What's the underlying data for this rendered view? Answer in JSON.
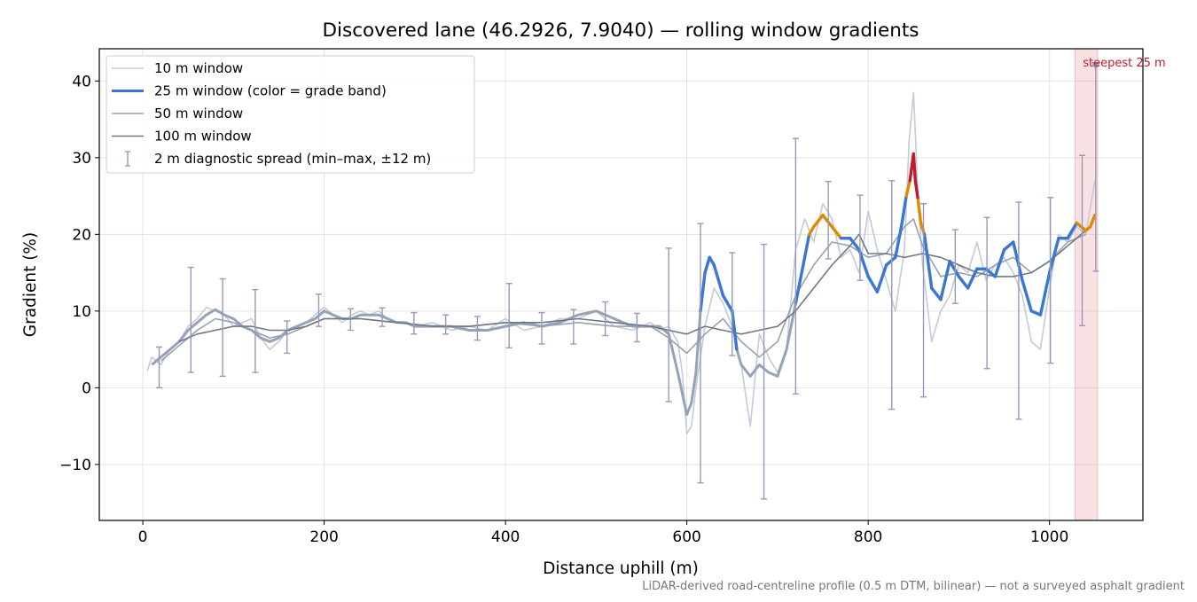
{
  "chart_data": {
    "type": "line",
    "title": "Discovered lane (46.2926, 7.9040) — rolling window gradients",
    "xlabel": "Distance uphill (m)",
    "ylabel": "Gradient (%)",
    "xlim": [
      -48,
      1103
    ],
    "ylim": [
      -17.3,
      44.2
    ],
    "grid": true,
    "legend_position": "top-left",
    "xticks": [
      0,
      200,
      400,
      600,
      800,
      1000
    ],
    "xtick_labels": [
      "0",
      "200",
      "400",
      "600",
      "800",
      "1000"
    ],
    "yticks": [
      -10,
      0,
      10,
      20,
      30,
      40
    ],
    "ytick_labels": [
      "−10",
      "0",
      "10",
      "20",
      "30",
      "40"
    ],
    "colors": {
      "w10": "#c3cbd6",
      "w25_base": "#94a3b8",
      "w50": "#98a1b0",
      "w100": "#6f7886",
      "spread": "#9a97bd",
      "band_normal": "#3a77d4",
      "band_steep": "#e08a00",
      "band_very_steep": "#c01c2c",
      "highlight": "#e8a3a8",
      "annotation": "#c01c2c",
      "footnote": "#777777"
    },
    "series": [
      {
        "name": "10 m window",
        "x": [
          5,
          10,
          20,
          30,
          40,
          50,
          60,
          70,
          80,
          90,
          100,
          110,
          120,
          130,
          140,
          150,
          160,
          170,
          180,
          190,
          200,
          210,
          220,
          230,
          240,
          250,
          260,
          270,
          280,
          290,
          300,
          320,
          340,
          360,
          380,
          400,
          420,
          440,
          460,
          480,
          500,
          520,
          540,
          560,
          570,
          580,
          590,
          595,
          600,
          605,
          610,
          620,
          630,
          640,
          650,
          660,
          670,
          680,
          690,
          700,
          710,
          720,
          730,
          740,
          750,
          760,
          770,
          780,
          790,
          800,
          810,
          820,
          830,
          840,
          845,
          850,
          855,
          860,
          870,
          880,
          890,
          900,
          910,
          920,
          930,
          940,
          950,
          960,
          970,
          980,
          990,
          1000,
          1010,
          1020,
          1030,
          1040,
          1050
        ],
        "y": [
          2.2,
          4,
          3,
          5,
          6,
          8,
          9,
          10.5,
          10,
          9.5,
          8,
          8.5,
          9,
          6.5,
          5,
          6,
          7.5,
          8,
          8.5,
          9.5,
          10.5,
          9.5,
          8.5,
          9.5,
          10,
          9.5,
          10,
          9,
          8.5,
          8.5,
          8,
          8.5,
          7.5,
          8,
          7.5,
          9,
          7.5,
          8,
          9,
          9,
          10,
          8,
          7.5,
          8.5,
          7.5,
          8,
          6,
          2,
          -6,
          -5,
          0,
          8,
          13,
          11,
          8,
          3,
          -5,
          7,
          4,
          2,
          5,
          18,
          22,
          19,
          24,
          22,
          17,
          18,
          15,
          23,
          18,
          14,
          10,
          18,
          32,
          38.5,
          25,
          16,
          6,
          10,
          12,
          16,
          15,
          19,
          14,
          16,
          17,
          15,
          12,
          6,
          5,
          13,
          20,
          19,
          21,
          20,
          27
        ]
      },
      {
        "name": "25 m window (color = grade band)",
        "x": [
          10,
          20,
          30,
          40,
          50,
          60,
          70,
          80,
          90,
          100,
          110,
          120,
          130,
          140,
          150,
          160,
          170,
          180,
          190,
          200,
          210,
          220,
          230,
          240,
          250,
          260,
          270,
          280,
          290,
          300,
          320,
          340,
          360,
          380,
          400,
          420,
          440,
          460,
          480,
          500,
          520,
          540,
          560,
          570,
          580,
          590,
          600,
          605,
          610,
          615,
          620,
          625,
          630,
          640,
          650,
          655,
          660,
          670,
          680,
          690,
          700,
          710,
          720,
          725,
          730,
          735,
          740,
          750,
          760,
          770,
          780,
          790,
          800,
          810,
          820,
          830,
          835,
          838,
          842,
          846,
          850,
          852,
          855,
          858,
          862,
          870,
          880,
          890,
          900,
          910,
          920,
          930,
          940,
          950,
          960,
          970,
          980,
          990,
          1000,
          1010,
          1020,
          1030,
          1035,
          1040,
          1045,
          1050
        ],
        "y": [
          3,
          4,
          5,
          6,
          7.5,
          8.5,
          9.5,
          10.2,
          9.5,
          9,
          8,
          7.5,
          6.5,
          6,
          6.5,
          7.5,
          8,
          8.5,
          9,
          10,
          9.5,
          9,
          9,
          9.5,
          9.5,
          9.5,
          9,
          8.5,
          8.5,
          8,
          8,
          8,
          7.5,
          7.5,
          8,
          8.5,
          8,
          8.5,
          9.5,
          10,
          9,
          8,
          8,
          8,
          7,
          2,
          -3.5,
          -2,
          2,
          10,
          15,
          17,
          16,
          12,
          10,
          5,
          3,
          1.5,
          3,
          2,
          1.5,
          5,
          11,
          14,
          17,
          20,
          21,
          22.5,
          21,
          19.5,
          19.5,
          18,
          14.5,
          12.5,
          16,
          17,
          20,
          22,
          25,
          27,
          30.5,
          27,
          24.5,
          21.5,
          20,
          13,
          11.5,
          16.5,
          14.5,
          13,
          15.5,
          15.5,
          14.5,
          18,
          19,
          14,
          10,
          9.5,
          15,
          19.5,
          19.5,
          21.5,
          21,
          20.5,
          21,
          22.5
        ],
        "bands": [
          "normal",
          "normal",
          "normal",
          "normal",
          "normal",
          "normal",
          "normal",
          "normal",
          "normal",
          "normal",
          "normal",
          "normal",
          "normal",
          "normal",
          "normal",
          "normal",
          "normal",
          "normal",
          "normal",
          "normal",
          "normal",
          "normal",
          "normal",
          "normal",
          "normal",
          "normal",
          "normal",
          "normal",
          "normal",
          "normal",
          "normal",
          "normal",
          "normal",
          "normal",
          "normal",
          "normal",
          "normal",
          "normal",
          "normal",
          "normal",
          "normal",
          "normal",
          "normal",
          "normal",
          "normal",
          "normal",
          "normal",
          "normal",
          "normal",
          "normal",
          "normal",
          "normal",
          "normal",
          "normal",
          "normal",
          "normal",
          "normal",
          "normal",
          "normal",
          "normal",
          "normal",
          "normal",
          "normal",
          "normal",
          "normal",
          "steep",
          "steep",
          "steep",
          "steep",
          "normal",
          "normal",
          "normal",
          "normal",
          "normal",
          "normal",
          "normal",
          "normal",
          "normal",
          "steep",
          "very_steep",
          "very_steep",
          "very_steep",
          "steep",
          "steep",
          "normal",
          "normal",
          "normal",
          "normal",
          "normal",
          "normal",
          "normal",
          "normal",
          "normal",
          "normal",
          "normal",
          "normal",
          "normal",
          "normal",
          "normal",
          "normal",
          "normal",
          "steep",
          "steep",
          "steep",
          "steep",
          "steep"
        ]
      },
      {
        "name": "50 m window",
        "x": [
          20,
          40,
          60,
          80,
          100,
          120,
          140,
          160,
          180,
          200,
          240,
          280,
          320,
          360,
          400,
          440,
          480,
          520,
          560,
          580,
          600,
          620,
          640,
          660,
          680,
          700,
          720,
          740,
          760,
          780,
          800,
          820,
          840,
          850,
          860,
          880,
          900,
          920,
          940,
          960,
          980,
          1000,
          1020,
          1040
        ],
        "y": [
          3.5,
          5.5,
          7.5,
          9,
          8.5,
          7.5,
          6.5,
          7,
          8,
          9,
          9,
          8.5,
          8,
          8,
          8.5,
          8,
          8.5,
          8,
          8,
          6.5,
          4.5,
          7,
          9,
          6,
          4,
          6,
          12,
          16,
          19,
          18.5,
          17,
          17.5,
          21,
          22,
          18.5,
          14.5,
          15,
          14.5,
          16,
          17,
          15,
          16.5,
          19,
          20
        ]
      },
      {
        "name": "100 m window",
        "x": [
          40,
          60,
          80,
          100,
          120,
          140,
          160,
          180,
          200,
          240,
          280,
          320,
          360,
          400,
          440,
          480,
          520,
          560,
          580,
          600,
          620,
          640,
          660,
          680,
          700,
          720,
          740,
          760,
          780,
          790,
          800,
          820,
          840,
          860,
          880,
          900,
          920,
          940,
          960,
          980,
          1000,
          1020,
          1040
        ],
        "y": [
          6,
          7,
          7.5,
          8,
          8,
          7.5,
          7.5,
          8,
          9,
          9,
          8.5,
          8,
          8,
          8.5,
          8.5,
          9,
          8.5,
          8,
          7.5,
          7,
          8,
          7.5,
          7,
          7.5,
          8,
          10,
          13,
          16,
          18.5,
          20,
          17.5,
          17.5,
          17,
          17.5,
          17,
          16,
          15,
          14.5,
          14.5,
          15,
          16.5,
          18.5,
          20.5
        ]
      }
    ],
    "spread": {
      "name": "2 m diagnostic spread (min–max, ±12 m)",
      "points": [
        {
          "x": 18,
          "low": 0,
          "high": 5.3
        },
        {
          "x": 53,
          "low": 2,
          "high": 15.7
        },
        {
          "x": 88,
          "low": 1.5,
          "high": 14.2
        },
        {
          "x": 124,
          "low": 2,
          "high": 12.8
        },
        {
          "x": 159,
          "low": 4.5,
          "high": 8.7
        },
        {
          "x": 194,
          "low": 8,
          "high": 12.2
        },
        {
          "x": 229,
          "low": 7.5,
          "high": 10.3
        },
        {
          "x": 264,
          "low": 8,
          "high": 10.4
        },
        {
          "x": 299,
          "low": 7,
          "high": 9.8
        },
        {
          "x": 334,
          "low": 7,
          "high": 9.5
        },
        {
          "x": 369,
          "low": 6.2,
          "high": 9.3
        },
        {
          "x": 404,
          "low": 5.2,
          "high": 13.6
        },
        {
          "x": 440,
          "low": 5.7,
          "high": 9.8
        },
        {
          "x": 475,
          "low": 5.7,
          "high": 10.2
        },
        {
          "x": 510,
          "low": 6.8,
          "high": 11.2
        },
        {
          "x": 545,
          "low": 6,
          "high": 9.7
        },
        {
          "x": 580,
          "low": -1.8,
          "high": 18.2
        },
        {
          "x": 615,
          "low": -12.4,
          "high": 21.4
        },
        {
          "x": 650,
          "low": 4.2,
          "high": 17.6
        },
        {
          "x": 685,
          "low": -14.5,
          "high": 18.7
        },
        {
          "x": 720,
          "low": -0.8,
          "high": 32.5
        },
        {
          "x": 756,
          "low": 16.8,
          "high": 26.9
        },
        {
          "x": 791,
          "low": 14,
          "high": 25.1
        },
        {
          "x": 826,
          "low": -2.8,
          "high": 27
        },
        {
          "x": 861,
          "low": -1.2,
          "high": 24
        },
        {
          "x": 896,
          "low": 11,
          "high": 20.6
        },
        {
          "x": 931,
          "low": 2.5,
          "high": 22.2
        },
        {
          "x": 966,
          "low": -4.1,
          "high": 24.2
        },
        {
          "x": 1001,
          "low": 3.2,
          "high": 24.8
        },
        {
          "x": 1036,
          "low": 8.1,
          "high": 30.3
        },
        {
          "x": 1051,
          "low": 15.2,
          "high": 42
        }
      ]
    },
    "highlight": {
      "label": "steepest 25 m",
      "x_start": 1028,
      "x_end": 1053,
      "marker_x": 1051,
      "marker_y": 42
    },
    "footnote": "LiDAR-derived road-centreline profile (0.5 m DTM, bilinear) — not a surveyed asphalt gradient"
  }
}
